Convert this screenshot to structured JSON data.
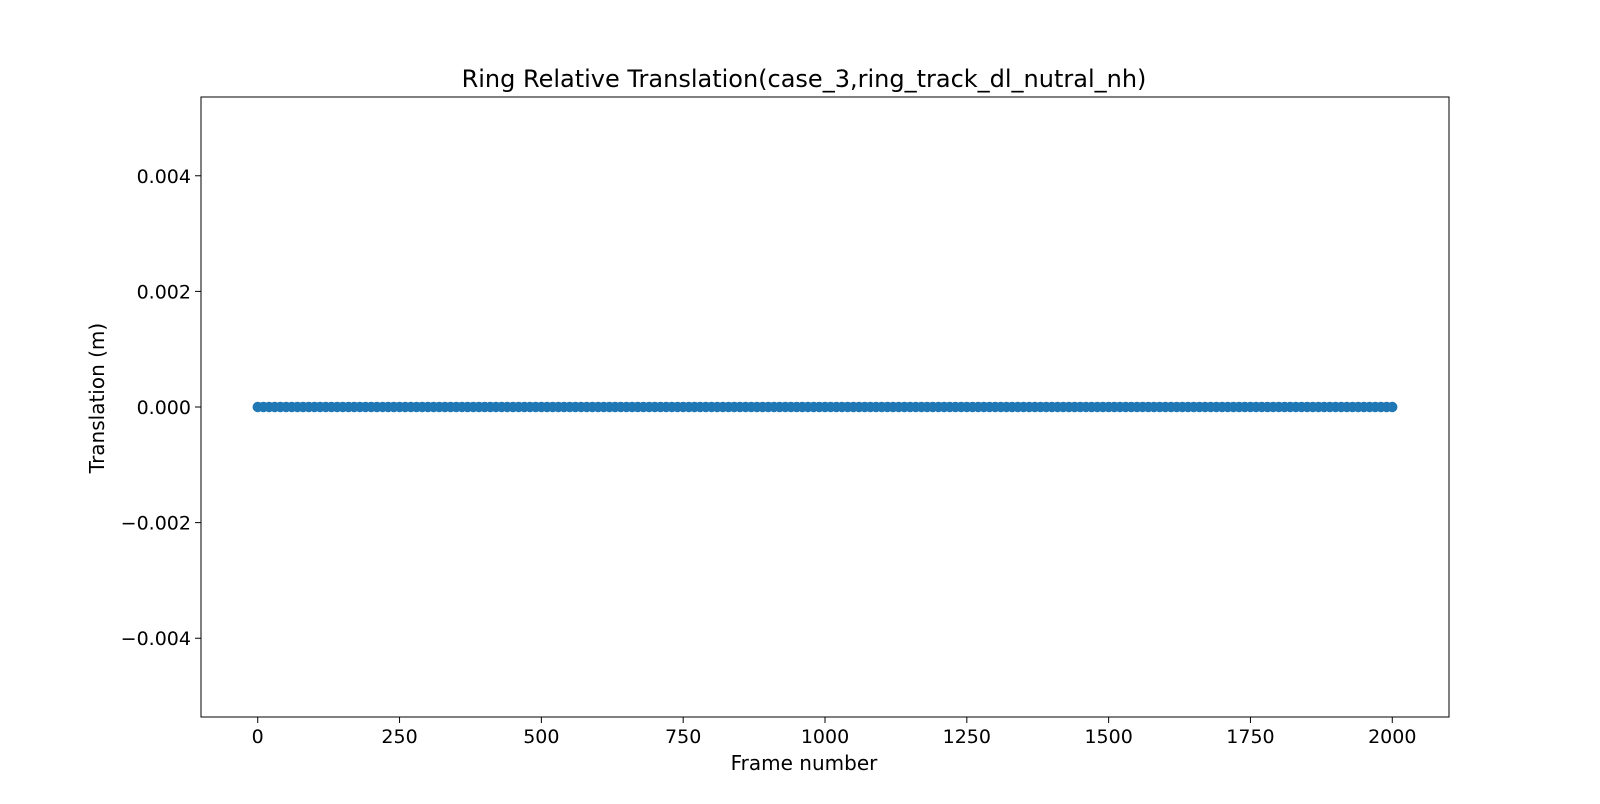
{
  "chart_data": {
    "type": "scatter",
    "title": "Ring Relative Translation(case_3,ring_track_dl_nutral_nh)",
    "xlabel": "Frame number",
    "ylabel": "Translation (m)",
    "xlim": [
      -100,
      2100
    ],
    "ylim": [
      -0.0053625,
      0.0053625
    ],
    "x_ticks": [
      0,
      250,
      500,
      750,
      1000,
      1250,
      1500,
      1750,
      2000
    ],
    "x_tick_labels": [
      "0",
      "250",
      "500",
      "750",
      "1000",
      "1250",
      "1500",
      "1750",
      "2000"
    ],
    "y_ticks": [
      0.004,
      0.002,
      0.0,
      -0.002,
      -0.004
    ],
    "y_tick_labels": [
      "0.004",
      "0.002",
      "0.000",
      "−0.002",
      "−0.004"
    ],
    "grid": false,
    "legend": "none",
    "series": [
      {
        "color": "#1f77b4",
        "x_start": 0,
        "x_end": 2000,
        "x_step": 10,
        "y_constant": 0.0
      }
    ]
  }
}
